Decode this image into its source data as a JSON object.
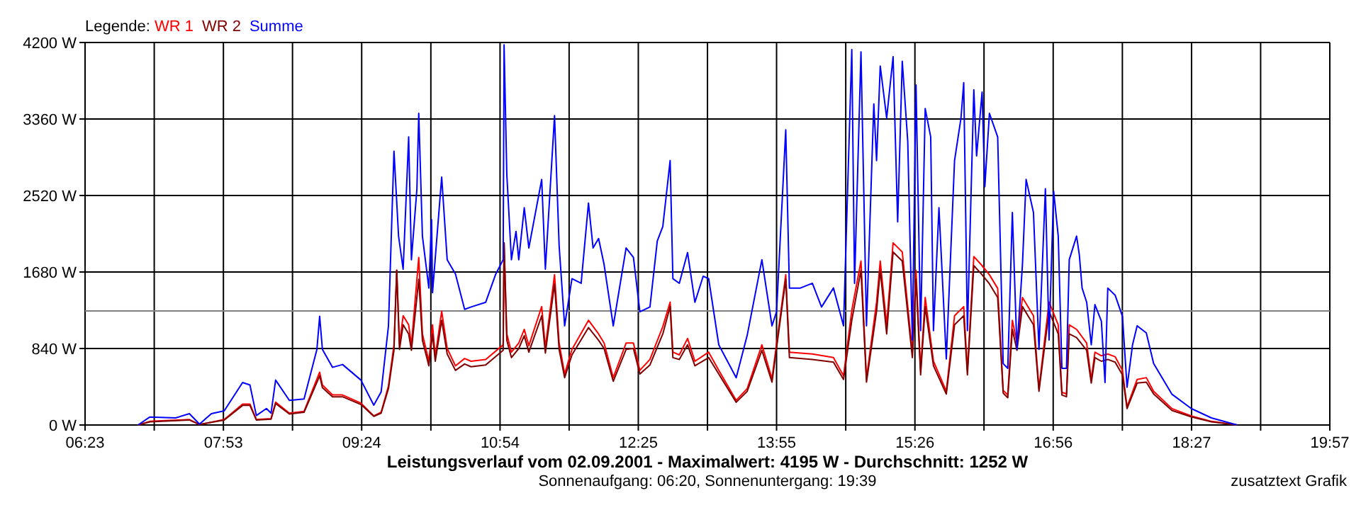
{
  "chart_data": {
    "type": "line",
    "title": "Leistungsverlauf vom 02.09.2001 - Maximalwert: 4195 W - Durchschnitt: 1252 W",
    "subtitle": "Sonnenaufgang: 06:20, Sonnenuntergang: 19:39",
    "annotations": [
      "zusatztext Grafik"
    ],
    "legend_title": "Legende:",
    "legend": "top left",
    "grid": true,
    "xlim": [
      6.383,
      19.95
    ],
    "xticks": [
      {
        "value": 6.383,
        "label": "06:23"
      },
      {
        "value": 7.137,
        "label": null
      },
      {
        "value": 7.891,
        "label": "07:53"
      },
      {
        "value": 8.644,
        "label": null
      },
      {
        "value": 9.398,
        "label": "09:24"
      },
      {
        "value": 10.152,
        "label": null
      },
      {
        "value": 10.906,
        "label": "10:54"
      },
      {
        "value": 11.659,
        "label": null
      },
      {
        "value": 12.413,
        "label": "12:25"
      },
      {
        "value": 13.167,
        "label": null
      },
      {
        "value": 13.92,
        "label": "13:55"
      },
      {
        "value": 14.674,
        "label": null
      },
      {
        "value": 15.428,
        "label": "15:26"
      },
      {
        "value": 16.181,
        "label": null
      },
      {
        "value": 16.935,
        "label": "16:56"
      },
      {
        "value": 17.689,
        "label": null
      },
      {
        "value": 18.443,
        "label": "18:27"
      },
      {
        "value": 19.196,
        "label": null
      },
      {
        "value": 19.95,
        "label": "19:57"
      }
    ],
    "ylim": [
      0,
      4200
    ],
    "yticks": [
      {
        "value": 0,
        "label": "0 W"
      },
      {
        "value": 840,
        "label": "840 W"
      },
      {
        "value": 1680,
        "label": "1680 W"
      },
      {
        "value": 2520,
        "label": "2520 W"
      },
      {
        "value": 3360,
        "label": "3360 W"
      },
      {
        "value": 4200,
        "label": "4200 W"
      }
    ],
    "ref_lines": [
      {
        "axis": "y",
        "value": 1252,
        "color": "#808080"
      }
    ],
    "series": [
      {
        "name": "WR 1",
        "color": "#ff0000",
        "x": [
          6.96,
          7.09,
          7.52,
          7.63,
          7.9,
          8.1,
          8.18,
          8.25,
          8.41,
          8.46,
          8.61,
          8.77,
          8.94,
          8.97,
          9.08,
          9.19,
          9.39,
          9.53,
          9.61,
          9.69,
          9.75,
          9.78,
          9.81,
          9.85,
          9.91,
          9.94,
          10.02,
          10.06,
          10.13,
          10.17,
          10.2,
          10.27,
          10.33,
          10.42,
          10.52,
          10.59,
          10.75,
          10.94,
          10.95,
          10.98,
          11.03,
          11.11,
          11.17,
          11.22,
          11.36,
          11.4,
          11.5,
          11.55,
          11.61,
          11.69,
          11.87,
          11.98,
          12.04,
          12.14,
          12.28,
          12.36,
          12.43,
          12.54,
          12.68,
          12.76,
          12.79,
          12.86,
          12.95,
          13.03,
          13.18,
          13.29,
          13.48,
          13.6,
          13.76,
          13.87,
          14.02,
          14.06,
          14.31,
          14.54,
          14.65,
          14.74,
          14.84,
          14.9,
          15.01,
          15.05,
          15.12,
          15.19,
          15.29,
          15.4,
          15.44,
          15.49,
          15.54,
          15.63,
          15.77,
          15.86,
          15.96,
          16.0,
          16.07,
          16.16,
          16.24,
          16.33,
          16.39,
          16.44,
          16.49,
          16.54,
          16.6,
          16.72,
          16.78,
          16.89,
          16.99,
          17.03,
          17.08,
          17.11,
          17.19,
          17.3,
          17.35,
          17.39,
          17.46,
          17.53,
          17.61,
          17.69,
          17.74,
          17.85,
          17.95,
          18.03,
          18.23,
          18.44,
          18.66,
          18.94
        ],
        "values": [
          0,
          40,
          60,
          5,
          60,
          230,
          230,
          60,
          70,
          250,
          130,
          150,
          580,
          440,
          330,
          330,
          240,
          100,
          140,
          430,
          880,
          1700,
          890,
          1200,
          1100,
          880,
          1840,
          1000,
          700,
          1100,
          750,
          1250,
          840,
          650,
          730,
          700,
          720,
          880,
          2000,
          1000,
          800,
          900,
          1050,
          870,
          1300,
          850,
          1650,
          900,
          560,
          830,
          1150,
          1000,
          900,
          520,
          900,
          900,
          600,
          720,
          1080,
          1350,
          800,
          770,
          950,
          700,
          800,
          600,
          270,
          400,
          880,
          510,
          1650,
          800,
          780,
          740,
          540,
          1260,
          1800,
          510,
          1350,
          1800,
          1100,
          2000,
          1900,
          800,
          1700,
          600,
          1400,
          700,
          370,
          1200,
          1300,
          600,
          1850,
          1750,
          1650,
          1500,
          380,
          330,
          1150,
          900,
          1400,
          1200,
          400,
          1350,
          1100,
          360,
          340,
          1100,
          1050,
          900,
          500,
          800,
          760,
          780,
          750,
          600,
          200,
          500,
          520,
          370,
          180,
          100,
          40,
          0
        ]
      },
      {
        "name": "WR 2",
        "color": "#800000",
        "x": [
          6.96,
          7.09,
          7.52,
          7.63,
          7.9,
          8.1,
          8.18,
          8.25,
          8.41,
          8.46,
          8.61,
          8.77,
          8.94,
          8.97,
          9.08,
          9.19,
          9.39,
          9.53,
          9.61,
          9.69,
          9.75,
          9.78,
          9.81,
          9.85,
          9.91,
          9.94,
          10.02,
          10.06,
          10.13,
          10.17,
          10.2,
          10.27,
          10.33,
          10.42,
          10.52,
          10.59,
          10.75,
          10.94,
          10.95,
          10.98,
          11.03,
          11.11,
          11.17,
          11.22,
          11.36,
          11.4,
          11.5,
          11.55,
          11.61,
          11.69,
          11.87,
          11.98,
          12.04,
          12.14,
          12.28,
          12.36,
          12.43,
          12.54,
          12.68,
          12.76,
          12.79,
          12.86,
          12.95,
          13.03,
          13.18,
          13.29,
          13.48,
          13.6,
          13.76,
          13.87,
          14.02,
          14.06,
          14.31,
          14.54,
          14.65,
          14.74,
          14.84,
          14.9,
          15.01,
          15.05,
          15.12,
          15.19,
          15.29,
          15.4,
          15.44,
          15.49,
          15.54,
          15.63,
          15.77,
          15.86,
          15.96,
          16.0,
          16.07,
          16.16,
          16.24,
          16.33,
          16.39,
          16.44,
          16.49,
          16.54,
          16.6,
          16.72,
          16.78,
          16.89,
          16.99,
          17.03,
          17.08,
          17.11,
          17.19,
          17.3,
          17.35,
          17.39,
          17.46,
          17.53,
          17.61,
          17.69,
          17.74,
          17.85,
          17.95,
          18.03,
          18.23,
          18.44,
          18.66,
          18.94
        ],
        "values": [
          0,
          35,
          55,
          5,
          55,
          215,
          215,
          55,
          65,
          235,
          120,
          140,
          540,
          410,
          310,
          310,
          225,
          95,
          130,
          400,
          820,
          1700,
          830,
          1100,
          1000,
          820,
          1600,
          930,
          650,
          1000,
          700,
          1150,
          780,
          600,
          670,
          640,
          660,
          820,
          2000,
          930,
          740,
          840,
          980,
          800,
          1200,
          790,
          1550,
          830,
          520,
          770,
          1070,
          930,
          840,
          480,
          830,
          840,
          560,
          660,
          1000,
          1300,
          740,
          720,
          880,
          650,
          740,
          560,
          250,
          370,
          820,
          470,
          1600,
          740,
          720,
          690,
          500,
          1150,
          1700,
          470,
          1250,
          1700,
          1000,
          1900,
          1800,
          740,
          1600,
          550,
          1300,
          650,
          340,
          1100,
          1200,
          550,
          1750,
          1650,
          1550,
          1400,
          350,
          300,
          1050,
          820,
          1300,
          1100,
          370,
          1250,
          1000,
          330,
          310,
          1000,
          960,
          820,
          460,
          740,
          700,
          720,
          690,
          550,
          180,
          460,
          470,
          340,
          160,
          90,
          35,
          0
        ]
      },
      {
        "name": "Summe",
        "color": "#0000ff",
        "x": [
          6.96,
          7.09,
          7.37,
          7.52,
          7.63,
          7.76,
          7.9,
          8.1,
          8.18,
          8.25,
          8.36,
          8.41,
          8.46,
          8.61,
          8.77,
          8.91,
          8.94,
          8.97,
          9.08,
          9.19,
          9.39,
          9.53,
          9.61,
          9.69,
          9.75,
          9.8,
          9.85,
          9.91,
          9.94,
          10.0,
          10.02,
          10.06,
          10.13,
          10.16,
          10.17,
          10.27,
          10.33,
          10.42,
          10.52,
          10.59,
          10.75,
          10.86,
          10.94,
          10.95,
          10.98,
          11.03,
          11.08,
          11.11,
          11.17,
          11.22,
          11.36,
          11.4,
          11.5,
          11.55,
          11.61,
          11.69,
          11.79,
          11.87,
          11.92,
          11.98,
          12.04,
          12.14,
          12.28,
          12.36,
          12.43,
          12.54,
          12.62,
          12.68,
          12.76,
          12.79,
          12.86,
          12.95,
          13.03,
          13.12,
          13.18,
          13.29,
          13.48,
          13.6,
          13.76,
          13.87,
          13.92,
          14.02,
          14.06,
          14.18,
          14.31,
          14.41,
          14.54,
          14.65,
          14.74,
          14.77,
          14.84,
          14.9,
          14.98,
          15.01,
          15.05,
          15.12,
          15.19,
          15.24,
          15.29,
          15.35,
          15.4,
          15.44,
          15.49,
          15.54,
          15.6,
          15.63,
          15.69,
          15.77,
          15.86,
          15.93,
          15.96,
          16.0,
          16.07,
          16.1,
          16.16,
          16.19,
          16.24,
          16.33,
          16.39,
          16.44,
          16.49,
          16.54,
          16.6,
          16.64,
          16.72,
          16.78,
          16.85,
          16.89,
          16.94,
          16.99,
          17.03,
          17.08,
          17.11,
          17.19,
          17.22,
          17.25,
          17.3,
          17.35,
          17.39,
          17.46,
          17.5,
          17.53,
          17.61,
          17.69,
          17.74,
          17.8,
          17.85,
          17.95,
          18.03,
          18.23,
          18.44,
          18.66,
          18.94
        ],
        "values": [
          0,
          88,
          78,
          124,
          10,
          124,
          155,
          467,
          440,
          104,
          181,
          130,
          493,
          270,
          285,
          830,
          1193,
          830,
          633,
          664,
          493,
          218,
          363,
          1089,
          3007,
          2074,
          1711,
          3163,
          1815,
          2593,
          3422,
          2074,
          1504,
          2255,
          1452,
          2722,
          1815,
          1659,
          1270,
          1296,
          1348,
          1659,
          1815,
          4174,
          2748,
          1815,
          2126,
          1815,
          2385,
          1944,
          2696,
          1711,
          3396,
          1970,
          1089,
          1607,
          1556,
          2437,
          1944,
          2048,
          1763,
          1089,
          1944,
          1841,
          1244,
          1296,
          2022,
          2178,
          2904,
          1607,
          1556,
          1893,
          1348,
          1633,
          1607,
          881,
          519,
          985,
          1815,
          1089,
          1244,
          3241,
          1504,
          1504,
          1556,
          1296,
          1504,
          1089,
          4122,
          1556,
          4096,
          1089,
          3526,
          2904,
          3941,
          3370,
          4044,
          2230,
          3993,
          3111,
          933,
          3733,
          1037,
          3474,
          3163,
          1037,
          2385,
          726,
          2904,
          3370,
          3759,
          1037,
          3681,
          2955,
          3655,
          2618,
          3422,
          3163,
          674,
          622,
          2333,
          830,
          1763,
          2696,
          2333,
          830,
          2593,
          933,
          2567,
          2074,
          622,
          622,
          1815,
          2074,
          1867,
          1504,
          1348,
          881,
          1322,
          1141,
          467,
          1504,
          1426,
          1193,
          415,
          881,
          1089,
          1011,
          674,
          337,
          181,
          78,
          0
        ]
      }
    ]
  }
}
